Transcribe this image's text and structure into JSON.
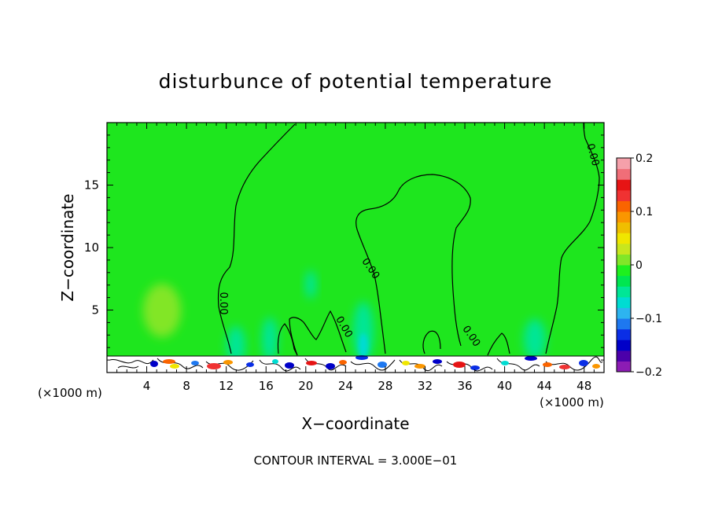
{
  "chart_data": {
    "type": "heatmap",
    "title": "disturbunce of potential temperature",
    "xlabel": "X−coordinate",
    "ylabel": "Z−coordinate",
    "x_unit_left": "(×1000 m)",
    "x_unit_right": "(×1000 m)",
    "footer": "CONTOUR INTERVAL = 3.000E−01",
    "x_ticks": [
      4,
      8,
      12,
      16,
      20,
      24,
      28,
      32,
      36,
      40,
      44,
      48
    ],
    "x_tick_labels": [
      "4",
      "8",
      "12",
      "16",
      "20",
      "24",
      "28",
      "32",
      "36",
      "40",
      "44",
      "48"
    ],
    "y_ticks": [
      5,
      10,
      15
    ],
    "y_tick_labels": [
      "5",
      "10",
      "15"
    ],
    "xlim": [
      0,
      50
    ],
    "ylim": [
      0,
      20
    ],
    "colorbar": {
      "min": -0.2,
      "max": 0.2,
      "ticks": [
        0.2,
        0.1,
        0,
        -0.1,
        -0.2
      ],
      "tick_labels": [
        "0.2",
        "0.1",
        "0",
        "−0.1",
        "−0.2"
      ],
      "colors_low_to_high": [
        "#8c1cb4",
        "#4b00aa",
        "#0000c8",
        "#0a2ee6",
        "#1e78f0",
        "#2db4f0",
        "#00dcd2",
        "#00e696",
        "#00e650",
        "#1ef01e",
        "#82e628",
        "#c8e61e",
        "#f0e600",
        "#f0be00",
        "#fa9600",
        "#fa6400",
        "#f03232",
        "#e61414",
        "#f06e78",
        "#f5a0aa"
      ]
    },
    "contour_labels": [
      "0.00",
      "0.00",
      "0.00",
      "0.00",
      "0.00",
      "0.00",
      "0.00"
    ],
    "background_value": 0,
    "features": [
      {
        "kind": "warm-anomaly",
        "x": 5,
        "z": 5,
        "value": 0.03
      },
      {
        "kind": "cool-plume",
        "x": 13,
        "z": 2,
        "value": -0.03
      },
      {
        "kind": "cool-plume",
        "x": 17,
        "z": 2,
        "value": -0.03
      },
      {
        "kind": "cool-plume",
        "x": 25.5,
        "z": 3,
        "value": -0.04
      },
      {
        "kind": "cool-plume",
        "x": 42.5,
        "z": 2.5,
        "value": -0.04
      },
      {
        "kind": "cool-plume",
        "x": 20.5,
        "z": 7,
        "value": -0.02
      }
    ]
  }
}
